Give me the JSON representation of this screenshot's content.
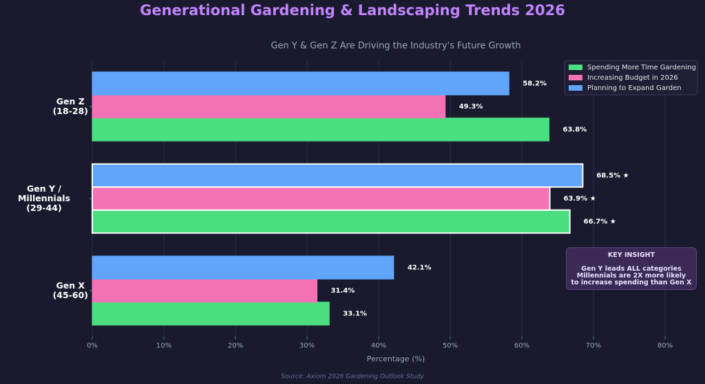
{
  "chart_data": {
    "type": "hbar",
    "title": "Generational Gardening & Landscaping Trends 2026",
    "subtitle": "Gen Y & Gen Z Are Driving the Industry's Future Growth",
    "x_label": "Percentage (%)",
    "source": "Source: Axiom 2026 Gardening Outlook Study",
    "categories": [
      "Gen Z\n(18-28)",
      "Gen Y / Millennials\n(29-44)",
      "Gen X\n(45-60)"
    ],
    "highlight_index": 1,
    "series": [
      {
        "name": "Spending More Time Gardening",
        "color": "#4ade80",
        "values": [
          63.8,
          66.7,
          33.1
        ],
        "value_labels": [
          "63.8%",
          "66.7% ★",
          "33.1%"
        ]
      },
      {
        "name": "Increasing Budget in 2026",
        "color": "#f472b6",
        "values": [
          49.3,
          63.9,
          31.4
        ],
        "value_labels": [
          "49.3%",
          "63.9% ★",
          "31.4%"
        ]
      },
      {
        "name": "Planning to Expand Garden",
        "color": "#60a5fa",
        "values": [
          58.2,
          68.5,
          42.1
        ],
        "value_labels": [
          "58.2%",
          "68.5% ★",
          "42.1%"
        ]
      }
    ],
    "xlim": [
      0,
      80
    ],
    "xticks": [
      {
        "value": 0,
        "label": "0%"
      },
      {
        "value": 10,
        "label": "10%"
      },
      {
        "value": 20,
        "label": "20%"
      },
      {
        "value": 30,
        "label": "30%"
      },
      {
        "value": 40,
        "label": "40%"
      },
      {
        "value": 50,
        "label": "50%"
      },
      {
        "value": 60,
        "label": "60%"
      },
      {
        "value": 70,
        "label": "70%"
      },
      {
        "value": 80,
        "label": "80%"
      }
    ],
    "grid": true,
    "legend_position": "upper right",
    "annotation": {
      "title": "KEY INSIGHT",
      "text": "Gen Y leads ALL categories\nMillennials are 2X more likely\nto increase spending than Gen X"
    }
  }
}
